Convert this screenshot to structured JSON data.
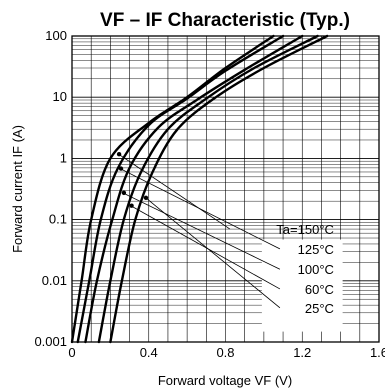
{
  "chart_data": {
    "type": "line",
    "title": "VF – IF Characteristic (Typ.)",
    "xlabel": "Forward voltage  VF (V)",
    "ylabel": "Forward current  IF (A)",
    "xlim": [
      0,
      1.6
    ],
    "ylim": [
      0.001,
      100
    ],
    "xscale": "linear",
    "yscale": "log",
    "x_ticks": [
      "0",
      "0.4",
      "0.8",
      "1.2",
      "1.6"
    ],
    "y_ticks": [
      "0.001",
      "0.01",
      "0.1",
      "1",
      "10",
      "100"
    ],
    "grid": true,
    "series": [
      {
        "name": "Ta=150°C",
        "points": [
          [
            0.0,
            0.001
          ],
          [
            0.05,
            0.01
          ],
          [
            0.1,
            0.1
          ],
          [
            0.2,
            1
          ],
          [
            0.4,
            3.8
          ],
          [
            0.6,
            10
          ],
          [
            0.8,
            30
          ],
          [
            1.05,
            100
          ]
        ]
      },
      {
        "name": "125°C",
        "points": [
          [
            0.03,
            0.001
          ],
          [
            0.09,
            0.01
          ],
          [
            0.15,
            0.1
          ],
          [
            0.24,
            0.7
          ],
          [
            0.4,
            3.5
          ],
          [
            0.6,
            9.5
          ],
          [
            0.8,
            27
          ],
          [
            1.1,
            100
          ]
        ]
      },
      {
        "name": "100°C",
        "points": [
          [
            0.07,
            0.001
          ],
          [
            0.13,
            0.01
          ],
          [
            0.21,
            0.1
          ],
          [
            0.3,
            0.7
          ],
          [
            0.45,
            3.2
          ],
          [
            0.65,
            9
          ],
          [
            0.9,
            28
          ],
          [
            1.2,
            100
          ]
        ]
      },
      {
        "name": "60°C",
        "points": [
          [
            0.14,
            0.001
          ],
          [
            0.2,
            0.01
          ],
          [
            0.27,
            0.1
          ],
          [
            0.36,
            0.6
          ],
          [
            0.5,
            3
          ],
          [
            0.7,
            9.5
          ],
          [
            0.95,
            30
          ],
          [
            1.28,
            100
          ]
        ]
      },
      {
        "name": "25°C",
        "points": [
          [
            0.2,
            0.001
          ],
          [
            0.26,
            0.01
          ],
          [
            0.33,
            0.1
          ],
          [
            0.42,
            0.6
          ],
          [
            0.55,
            3
          ],
          [
            0.75,
            10
          ],
          [
            1.0,
            30
          ],
          [
            1.33,
            100
          ]
        ]
      }
    ]
  }
}
